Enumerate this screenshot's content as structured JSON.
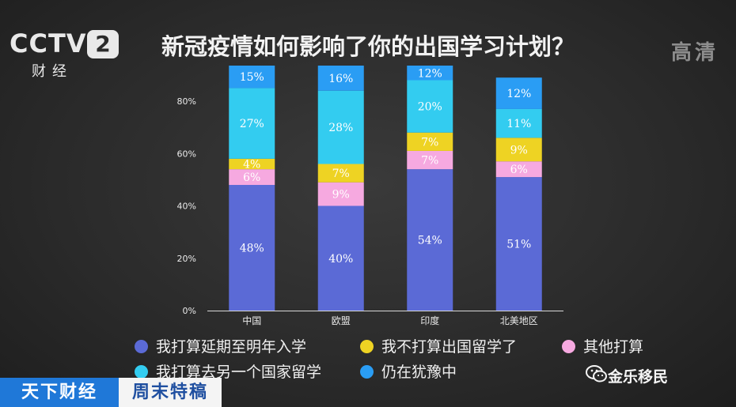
{
  "channel": {
    "logo_main": "CCTV",
    "logo_number": "2",
    "logo_sub": "财经",
    "quality": "高清"
  },
  "chart_data": {
    "type": "bar",
    "stacked": true,
    "title": "新冠疫情如何影响了你的出国学习计划？",
    "categories": [
      "中国",
      "欧盟",
      "印度",
      "北美地区"
    ],
    "ylim": [
      0,
      100
    ],
    "yticks": [
      "0%",
      "20%",
      "40%",
      "60%",
      "80%"
    ],
    "grid": false,
    "legend_position": "bottom",
    "series": [
      {
        "name": "我打算延期至明年入学",
        "color": "#5b6ad6",
        "values": [
          48,
          40,
          54,
          51
        ],
        "labels": [
          "48%",
          "40%",
          "54%",
          "51%"
        ]
      },
      {
        "name": "其他打算",
        "color": "#f6a9e0",
        "values": [
          6,
          9,
          7,
          6
        ],
        "labels": [
          "6%",
          "9%",
          "7%",
          "6%"
        ]
      },
      {
        "name": "我不打算出国留学了",
        "color": "#eed323",
        "values": [
          4,
          7,
          7,
          9
        ],
        "labels": [
          "4%",
          "7%",
          "7%",
          "9%"
        ]
      },
      {
        "name": "我打算去另一个国家留学",
        "color": "#33ccf0",
        "values": [
          27,
          28,
          20,
          11
        ],
        "labels": [
          "27%",
          "28%",
          "20%",
          "11%"
        ]
      },
      {
        "name": "仍在犹豫中",
        "color": "#2a9df4",
        "values": [
          15,
          16,
          12,
          12
        ],
        "labels": [
          "15%",
          "16%",
          "12%",
          "12%"
        ]
      }
    ]
  },
  "legend": [
    {
      "label": "我打算延期至明年入学",
      "color": "#5b6ad6"
    },
    {
      "label": "我不打算出国留学了",
      "color": "#eed323"
    },
    {
      "label": "其他打算",
      "color": "#f6a9e0"
    },
    {
      "label": "我打算去另一个国家留学",
      "color": "#33ccf0"
    },
    {
      "label": "仍在犹豫中",
      "color": "#2a9df4"
    }
  ],
  "ticker": {
    "program": "天下财经",
    "segment": "周末特稿"
  },
  "watermark": {
    "text": "金乐移民",
    "icon": "wechat-icon"
  }
}
